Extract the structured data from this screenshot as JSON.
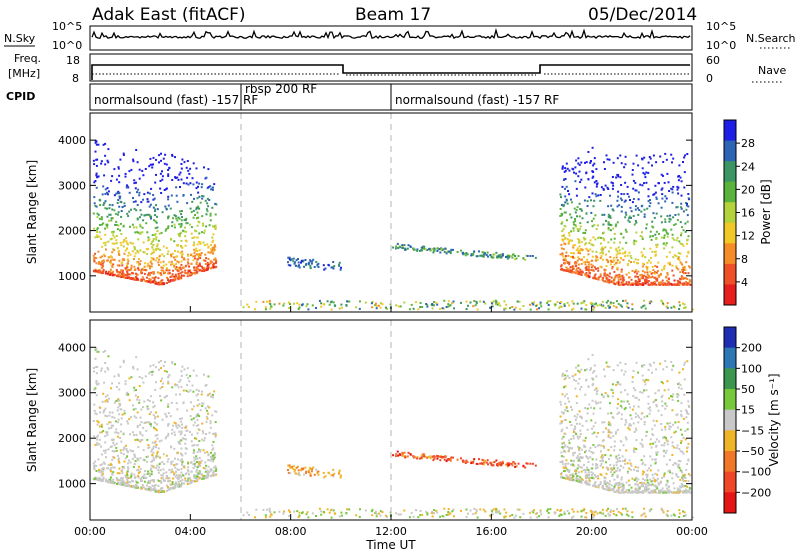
{
  "header": {
    "radar": "Adak East (fitACF)",
    "beam": "Beam 17",
    "date": "05/Dec/2014"
  },
  "strips": {
    "nsky_label": "N.Sky",
    "nsky_ticks": [
      "10^5",
      "10^0"
    ],
    "nsearch_label": "N.Search",
    "nsearch_ticks": [
      "10^5",
      "10^0"
    ],
    "freq_label_top": "Freq.",
    "freq_label_bottom": "[MHz]",
    "freq_ticks": [
      "18",
      "8"
    ],
    "nave_label": "Nave",
    "nave_ticks": [
      "60",
      "0"
    ],
    "cpid_label": "CPID",
    "cpid_segments": [
      {
        "label": "normalsound (fast) -157 RF",
        "start_h": 0,
        "end_h": 6
      },
      {
        "label": "rbsp 200 RF",
        "start_h": 6,
        "end_h": 12
      },
      {
        "label": "normalsound (fast) -157 RF",
        "start_h": 12,
        "end_h": 24
      }
    ]
  },
  "chart_data": [
    {
      "type": "heatmap",
      "parameter": "Power",
      "ylabel": "Slant Range [km]",
      "ylim": [
        200,
        4600
      ],
      "yticks": [
        1000,
        2000,
        3000,
        4000
      ],
      "xlim_hours": [
        0,
        24
      ],
      "colorbar_label": "Power [dB]",
      "colorbar_ticks": [
        4,
        8,
        12,
        16,
        20,
        24,
        28
      ],
      "colorbar_range": [
        0,
        32
      ],
      "colorbar_colors": [
        "#1e1ee6",
        "#2d64b4",
        "#3c9664",
        "#5ab43c",
        "#b4d23c",
        "#f0c828",
        "#f58c28",
        "#f05028",
        "#e61e1e"
      ],
      "dashed_lines_hours": [
        6,
        12
      ]
    },
    {
      "type": "heatmap",
      "parameter": "Velocity",
      "ylabel": "Slant Range [km]",
      "ylim": [
        200,
        4600
      ],
      "yticks": [
        1000,
        2000,
        3000,
        4000
      ],
      "xlim_hours": [
        0,
        24
      ],
      "xticks": [
        "00:00",
        "04:00",
        "08:00",
        "12:00",
        "16:00",
        "20:00",
        "00:00"
      ],
      "xlabel": "Time UT",
      "colorbar_label": "Velocity [m s⁻¹]",
      "colorbar_ticks": [
        200,
        100,
        50,
        15,
        -15,
        -50,
        -100,
        -200
      ],
      "colorbar_colors": [
        "#1e2db4",
        "#2d78b4",
        "#3c9650",
        "#78c83c",
        "#c8c8c8",
        "#f0b428",
        "#f07828",
        "#f04628",
        "#e61414"
      ],
      "dashed_lines_hours": [
        6,
        12
      ]
    }
  ]
}
